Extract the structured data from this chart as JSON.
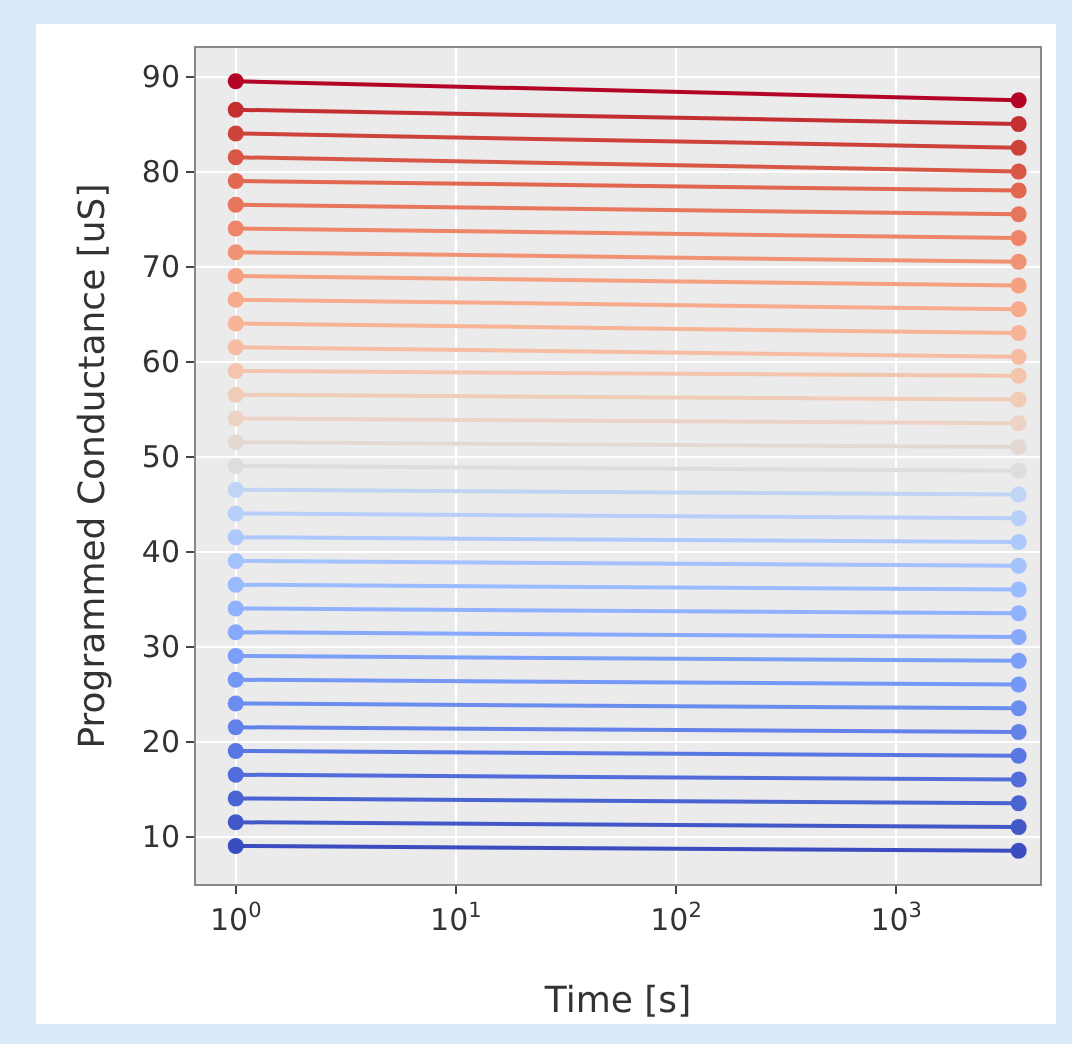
{
  "chart_data": {
    "type": "line",
    "xlabel": "Time [s]",
    "ylabel": "Programmed Conductance [uS]",
    "log": "x",
    "grid": true,
    "legend": false,
    "marker": "circle",
    "line_style": "solid",
    "xlim": [
      0.66,
      4500
    ],
    "xticks": [
      {
        "value": 1,
        "label": "10$^{0}$"
      },
      {
        "value": 10,
        "label": "10$^{1}$"
      },
      {
        "value": 100,
        "label": "10$^{2}$"
      },
      {
        "value": 1000,
        "label": "10$^{3}$"
      }
    ],
    "ylim": [
      5,
      93
    ],
    "yticks": [
      10,
      20,
      30,
      40,
      50,
      60,
      70,
      80,
      90
    ],
    "x": [
      1,
      3600
    ],
    "series": [
      {
        "color": "#3b4cc0",
        "values": [
          9,
          8.5
        ]
      },
      {
        "color": "#4358c8",
        "values": [
          11.5,
          11
        ]
      },
      {
        "color": "#4a63d3",
        "values": [
          14,
          13.5
        ]
      },
      {
        "color": "#526ddb",
        "values": [
          16.5,
          16
        ]
      },
      {
        "color": "#5977e3",
        "values": [
          19,
          18.5
        ]
      },
      {
        "color": "#6282ea",
        "values": [
          21.5,
          21
        ]
      },
      {
        "color": "#6b8df0",
        "values": [
          24,
          23.5
        ]
      },
      {
        "color": "#7597f6",
        "values": [
          26.5,
          26
        ]
      },
      {
        "color": "#7b9ff9",
        "values": [
          29,
          28.5
        ]
      },
      {
        "color": "#86a9fc",
        "values": [
          31.5,
          31
        ]
      },
      {
        "color": "#90b2fe",
        "values": [
          34,
          33.5
        ]
      },
      {
        "color": "#9abbff",
        "values": [
          36.5,
          36
        ]
      },
      {
        "color": "#a3c2fe",
        "values": [
          39,
          38.5
        ]
      },
      {
        "color": "#adc9fc",
        "values": [
          41.5,
          41
        ]
      },
      {
        "color": "#b7cff9",
        "values": [
          44,
          43.5
        ]
      },
      {
        "color": "#c0d4f5",
        "values": [
          46.5,
          46
        ]
      },
      {
        "color": "#dcdddd",
        "values": [
          49,
          48.5
        ]
      },
      {
        "color": "#e4d9d2",
        "values": [
          51.5,
          51
        ]
      },
      {
        "color": "#ecd3c5",
        "values": [
          54,
          53.5
        ]
      },
      {
        "color": "#f1ccb8",
        "values": [
          56.5,
          56
        ]
      },
      {
        "color": "#f4c5ad",
        "values": [
          59,
          58.5
        ]
      },
      {
        "color": "#f6bda2",
        "values": [
          61.5,
          60.5
        ]
      },
      {
        "color": "#f7b497",
        "values": [
          64,
          63
        ]
      },
      {
        "color": "#f7aa8c",
        "values": [
          66.5,
          65.5
        ]
      },
      {
        "color": "#f5a081",
        "values": [
          69,
          68
        ]
      },
      {
        "color": "#f29274",
        "values": [
          71.5,
          70.5
        ]
      },
      {
        "color": "#ee8468",
        "values": [
          74,
          73
        ]
      },
      {
        "color": "#e8765c",
        "values": [
          76.5,
          75.5
        ]
      },
      {
        "color": "#e16751",
        "values": [
          79,
          78
        ]
      },
      {
        "color": "#d85646",
        "values": [
          81.5,
          80
        ]
      },
      {
        "color": "#cd423b",
        "values": [
          84,
          82.5
        ]
      },
      {
        "color": "#c32e31",
        "values": [
          86.5,
          85
        ]
      },
      {
        "color": "#b40426",
        "values": [
          89.5,
          87.5
        ]
      }
    ]
  }
}
